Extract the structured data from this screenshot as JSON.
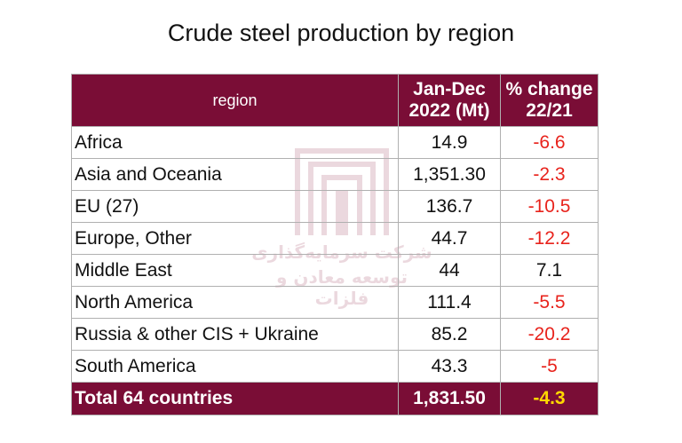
{
  "title": "Crude steel production by region",
  "watermark": {
    "line1": "شرکت سرمایه‌گذاری",
    "line2": "توسعه معادن و فلزات"
  },
  "colors": {
    "header_bg": "#7a0d36",
    "negative": "#e8231c",
    "total_change": "#ffd800"
  },
  "chart_data": {
    "type": "table",
    "columns": [
      "region",
      "Jan-Dec 2022 (Mt)",
      "% change 22/21"
    ],
    "header": {
      "region": "region",
      "production_line1": "Jan-Dec",
      "production_line2": "2022 (Mt)",
      "change_line1": "% change",
      "change_line2": "22/21"
    },
    "rows": [
      {
        "region": "Africa",
        "production": "14.9",
        "change": "-6.6",
        "negative": true
      },
      {
        "region": "Asia and Oceania",
        "production": "1,351.30",
        "change": "-2.3",
        "negative": true
      },
      {
        "region": "EU (27)",
        "production": "136.7",
        "change": "-10.5",
        "negative": true
      },
      {
        "region": "Europe, Other",
        "production": "44.7",
        "change": "-12.2",
        "negative": true
      },
      {
        "region": "Middle East",
        "production": "44",
        "change": "7.1",
        "negative": false
      },
      {
        "region": "North America",
        "production": "111.4",
        "change": "-5.5",
        "negative": true
      },
      {
        "region": "Russia & other CIS + Ukraine",
        "production": "85.2",
        "change": "-20.2",
        "negative": true
      },
      {
        "region": "South America",
        "production": "43.3",
        "change": "-5",
        "negative": true
      }
    ],
    "total": {
      "region": "Total 64 countries",
      "production": "1,831.50",
      "change": "-4.3"
    }
  }
}
